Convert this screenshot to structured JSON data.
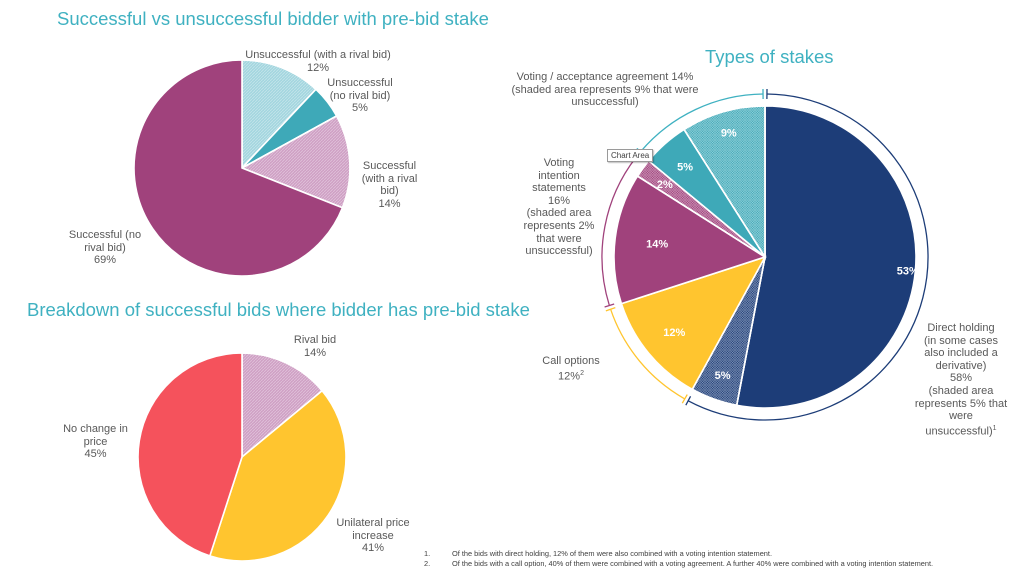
{
  "chart_data": [
    {
      "type": "pie",
      "title": "Successful vs unsuccessful bidder with pre-bid stake",
      "start": "12 o'clock, clockwise",
      "slices": [
        {
          "label": "Unsuccessful (with a rival bid)",
          "value": 12,
          "display": "12%",
          "color": "#a3d6df",
          "hatched": true
        },
        {
          "label": "Unsuccessful (no rival bid)",
          "value": 5,
          "display": "5%",
          "color": "#3ea9b8",
          "hatched": false
        },
        {
          "label": "Successful (with a rival bid)",
          "value": 14,
          "display": "14%",
          "color": "#cfa0c4",
          "hatched": true
        },
        {
          "label": "Successful (no rival bid)",
          "value": 69,
          "display": "69%",
          "color": "#a0427c",
          "hatched": false
        }
      ]
    },
    {
      "type": "pie",
      "title": "Breakdown of successful bids where bidder has pre-bid stake",
      "start": "12 o'clock, clockwise",
      "slices": [
        {
          "label": "Rival bid",
          "value": 14,
          "display": "14%",
          "color": "#cfa0c4",
          "hatched": true
        },
        {
          "label": "Unilateral price increase",
          "value": 41,
          "display": "41%",
          "color": "#ffc52f",
          "hatched": false
        },
        {
          "label": "No change in price",
          "value": 45,
          "display": "45%",
          "color": "#f5525c",
          "hatched": false
        }
      ]
    },
    {
      "type": "pie",
      "title": "Types of stakes",
      "start": "12 o'clock, clockwise",
      "slices": [
        {
          "label": "Direct holding",
          "value": 53,
          "display": "53%",
          "color": "#1d3d78",
          "hatched": false,
          "group": "direct"
        },
        {
          "label": "Direct holding (unsuccessful)",
          "value": 5,
          "display": "5%",
          "color": "#1d3d78",
          "hatched": true,
          "group": "direct"
        },
        {
          "label": "Call options",
          "value": 12,
          "display": "12%",
          "color": "#ffc52f",
          "hatched": false,
          "group": "call"
        },
        {
          "label": "Voting intention statements",
          "value": 14,
          "display": "14%",
          "color": "#a0427c",
          "hatched": false,
          "group": "intention"
        },
        {
          "label": "Voting intention statements (unsuccessful)",
          "value": 2,
          "display": "2%",
          "color": "#a0427c",
          "hatched": true,
          "group": "intention"
        },
        {
          "label": "Voting / acceptance agreement",
          "value": 5,
          "display": "5%",
          "color": "#3ea9b8",
          "hatched": false,
          "group": "agreement"
        },
        {
          "label": "Voting / acceptance agreement (unsuccessful)",
          "value": 9,
          "display": "9%",
          "color": "#3ea9b8",
          "hatched": true,
          "group": "agreement"
        }
      ],
      "groups": [
        {
          "id": "direct",
          "total": 58,
          "color": "#1d3d78",
          "label": "Direct holding\n(in some cases\nalso included a\nderivative)\n58%\n(shaded area\nrepresents 5% that\nwere\nunsuccessful)",
          "footnote_ref": "1"
        },
        {
          "id": "call",
          "total": 12,
          "color": "#ffc52f",
          "label": "Call options\n12%",
          "footnote_ref": "2"
        },
        {
          "id": "intention",
          "total": 16,
          "color": "#a0427c",
          "label": "Voting\nintention\nstatements\n16%\n(shaded area\nrepresents 2%\nthat were\nunsuccessful)",
          "footnote_ref": ""
        },
        {
          "id": "agreement",
          "total": 14,
          "color": "#3fb1c1",
          "label": "Voting / acceptance agreement 14%\n(shaded area represents 9% that were\nunsuccessful)",
          "footnote_ref": ""
        }
      ]
    }
  ],
  "labels": {
    "pie1": {
      "unsucc_rival": "Unsuccessful (with a rival bid)\n12%",
      "unsucc_norival": "Unsuccessful\n(no rival bid)\n5%",
      "succ_rival": "Successful\n(with a rival\nbid)\n14%",
      "succ_norival": "Successful (no\nrival bid)\n69%"
    },
    "pie2": {
      "rival": "Rival bid\n14%",
      "unilateral": "Unilateral price\nincrease\n41%",
      "nochange": "No change in\nprice\n45%"
    }
  },
  "tooltip": "Chart Area",
  "footnotes": [
    {
      "num": "1.",
      "text": "Of the bids with direct holding, 12% of them were also combined with a voting intention statement."
    },
    {
      "num": "2.",
      "text": "Of the bids with a call option, 40% of them were combined with a voting agreement. A further 40% were combined with a voting intention statement."
    }
  ]
}
